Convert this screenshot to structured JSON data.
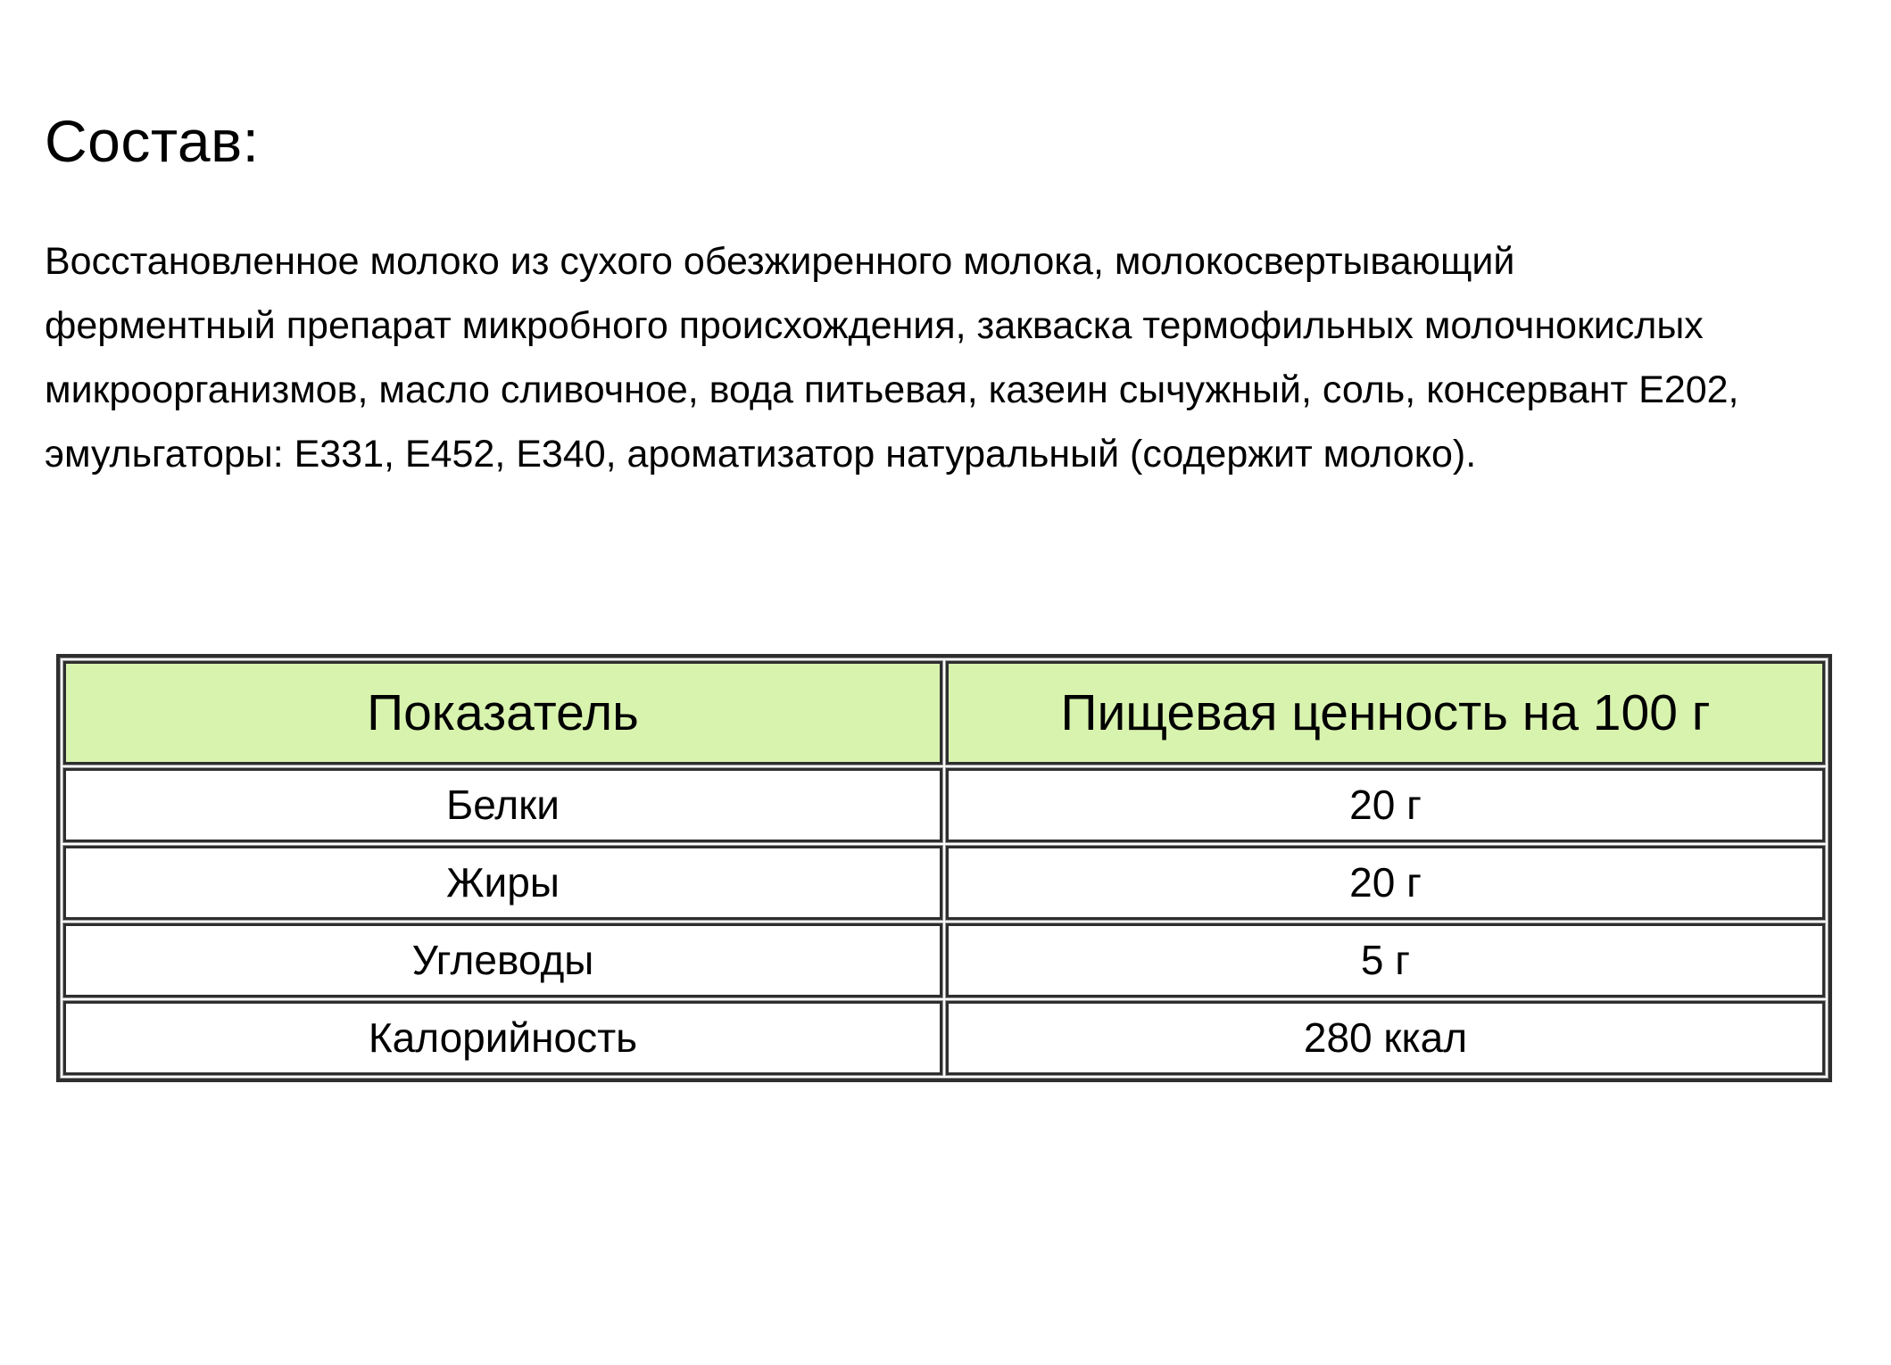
{
  "page": {
    "title": "Состав:",
    "description": "Восстановленное молоко из сухого обезжиренного молока, молокосвертывающий ферментный препарат микробного происхождения, закваска термофильных молочнокислых микроорганизмов, масло сливочное, вода питьевая, казеин сычужный, соль, консервант Е202, эмульгаторы: Е331, Е452, Е340, ароматизатор натуральный (содержит молоко)."
  },
  "table": {
    "headers": [
      "Показатель",
      "Пищевая ценность на 100 г"
    ],
    "rows": [
      {
        "label": "Белки",
        "value": "20 г"
      },
      {
        "label": "Жиры",
        "value": "20 г"
      },
      {
        "label": "Углеводы",
        "value": "5 г"
      },
      {
        "label": "Калорийность",
        "value": "280 ккал"
      }
    ],
    "colors": {
      "header_background": "#d8f3ae",
      "border": "#2e2e2e",
      "text": "#000000",
      "page_background": "#ffffff"
    }
  }
}
